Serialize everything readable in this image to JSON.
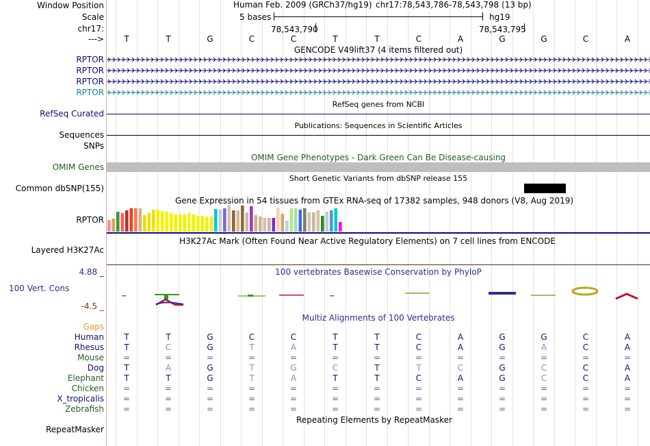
{
  "colors": {
    "gene_dark": "#0c0c78",
    "gene_light": "#1a7ea0",
    "omim_title": "#1f5f1f",
    "omim_bar": "#bebebe",
    "cons_label": "#2c2c90",
    "cons_neg": "#8b2a10",
    "gaps": "#e09a2a",
    "chicken": "#1f5f1f",
    "frog": "#0c0c78"
  },
  "labels": {
    "window_position": "Window Position",
    "scale": "Scale",
    "chr": "chr17:",
    "arrow": "--->",
    "refseq": "RefSeq Curated",
    "sequences": "Sequences",
    "snps": "SNPs",
    "omim": "OMIM Genes",
    "dbsnp": "Common dbSNP(155)",
    "gtex_gene": "RPTOR",
    "h3k27ac": "Layered H3K27Ac",
    "cons_max": "4.88 _",
    "cons": "100 Vert. Cons",
    "cons_min": "-4.5 _",
    "gaps": "Gaps",
    "repeatmasker": "RepeatMasker"
  },
  "header": {
    "assembly": "Human Feb. 2009 (GRCh37/hg19)",
    "position": "chr17:78,543,786-78,543,798 (13 bp)",
    "scale_text": "5 bases",
    "scale_db": "hg19",
    "coord1": "78,543,790",
    "coord2": "78,543,795"
  },
  "sequence": [
    "T",
    "T",
    "G",
    "C",
    "C",
    "T",
    "T",
    "C",
    "A",
    "G",
    "G",
    "C",
    "A"
  ],
  "gencode": {
    "title": "GENCODE V49lift37 (4 items filtered out)",
    "tracks": [
      {
        "label": "RPTOR",
        "style": "dark"
      },
      {
        "label": "RPTOR",
        "style": "dark"
      },
      {
        "label": "RPTOR",
        "style": "dark"
      },
      {
        "label": "RPTOR",
        "style": "light"
      }
    ]
  },
  "titles": {
    "refseq": "RefSeq genes from NCBI",
    "pubs": "Publications: Sequences in Scientific Articles",
    "omim": "OMIM Gene Phenotypes - Dark Green Can Be Disease-causing",
    "dbsnp": "Short Genetic Variants from dbSNP release 155",
    "gtex": "Gene Expression in 54 tissues from GTEx RNA-seq of 17382 samples, 948 donors (V8, Aug 2019)",
    "h3k27ac": "H3K27Ac Mark (Often Found Near Active Regulatory Elements) on 7 cell lines from ENCODE",
    "cons": "100 vertebrates Basewise Conservation by PhyloP",
    "multiz": "Multiz Alignments of 100 Vertebrates",
    "repeatmasker": "Repeating Elements by RepeatMasker"
  },
  "gtex_bars": {
    "values": [
      17,
      19,
      29,
      27,
      31,
      34,
      34,
      34,
      24,
      27,
      32,
      32,
      30,
      29,
      27,
      25,
      25,
      25,
      27,
      25,
      23,
      23,
      22,
      22,
      33,
      32,
      34,
      38,
      31,
      31,
      38,
      28,
      37,
      24,
      22,
      20,
      20,
      20,
      34,
      26,
      16,
      34,
      34,
      32,
      34,
      28,
      28,
      31,
      23,
      29,
      31,
      34,
      14
    ],
    "colors": [
      "#ff8c8c",
      "#d8a05a",
      "#3b9a3b",
      "#ff5a5a",
      "#b83030",
      "#ff3a1a",
      "#ff7a4a",
      "#d8b090",
      "#e8e000",
      "#e8e000",
      "#f2e000",
      "#f2f200",
      "#f2f200",
      "#f2f200",
      "#f2f200",
      "#f2f200",
      "#f2f200",
      "#f2f200",
      "#f2f200",
      "#f2f200",
      "#f2f200",
      "#f2f200",
      "#f2f200",
      "#f2f200",
      "#00c8d8",
      "#b8d0e8",
      "#7a68d0",
      "#d8c0a8",
      "#8a6a3a",
      "#d8b898",
      "#8a6a3a",
      "#c8b8a8",
      "#a03ab8",
      "#d0b090",
      "#c8b898",
      "#d0c0a8",
      "#c8b898",
      "#7a2ac8",
      "#f0d0b8",
      "#e8a060",
      "#b8d0e8",
      "#b0e890",
      "#a8e0a0",
      "#3a68e8",
      "#7a7a7a",
      "#d8c0a8",
      "#c8b898",
      "#d8c0a8",
      "#2a8a2a",
      "#c8c8c8",
      "#4a9ad8",
      "#00c8d8",
      "#ff00ff"
    ]
  },
  "multiz": {
    "rows": [
      {
        "species": "Human",
        "bases": [
          "T",
          "T",
          "G",
          "C",
          "C",
          "T",
          "T",
          "C",
          "A",
          "G",
          "G",
          "C",
          "A"
        ]
      },
      {
        "species": "Rhesus",
        "bases": [
          "T",
          "C",
          "G",
          "T",
          "A",
          "T",
          "T",
          "C",
          "A",
          "G",
          "A",
          "C",
          "A"
        ]
      },
      {
        "species": "Mouse",
        "bases": [
          "=",
          "=",
          "=",
          "=",
          "=",
          "=",
          "=",
          "=",
          "=",
          "=",
          "=",
          "=",
          "="
        ]
      },
      {
        "species": "Dog",
        "bases": [
          "T",
          "A",
          "G",
          "T",
          "G",
          "C",
          "T",
          "T",
          "C",
          "G",
          "C",
          "C",
          "A"
        ]
      },
      {
        "species": "Elephant",
        "bases": [
          "T",
          "T",
          "G",
          "T",
          "A",
          "T",
          "T",
          "C",
          "A",
          "G",
          "C",
          "C",
          "A"
        ]
      },
      {
        "species": "Chicken",
        "bases": [
          "=",
          "=",
          "=",
          "=",
          "=",
          "=",
          "=",
          "=",
          "=",
          "=",
          "=",
          "=",
          "="
        ]
      },
      {
        "species": "X_tropicalis",
        "bases": [
          "=",
          "=",
          "=",
          "=",
          "=",
          "=",
          "=",
          "=",
          "=",
          "=",
          "=",
          "=",
          "="
        ]
      },
      {
        "species": "Zebrafish",
        "bases": [
          "=",
          "=",
          "=",
          "=",
          "=",
          "=",
          "=",
          "=",
          "=",
          "=",
          "=",
          "=",
          "="
        ]
      }
    ]
  }
}
